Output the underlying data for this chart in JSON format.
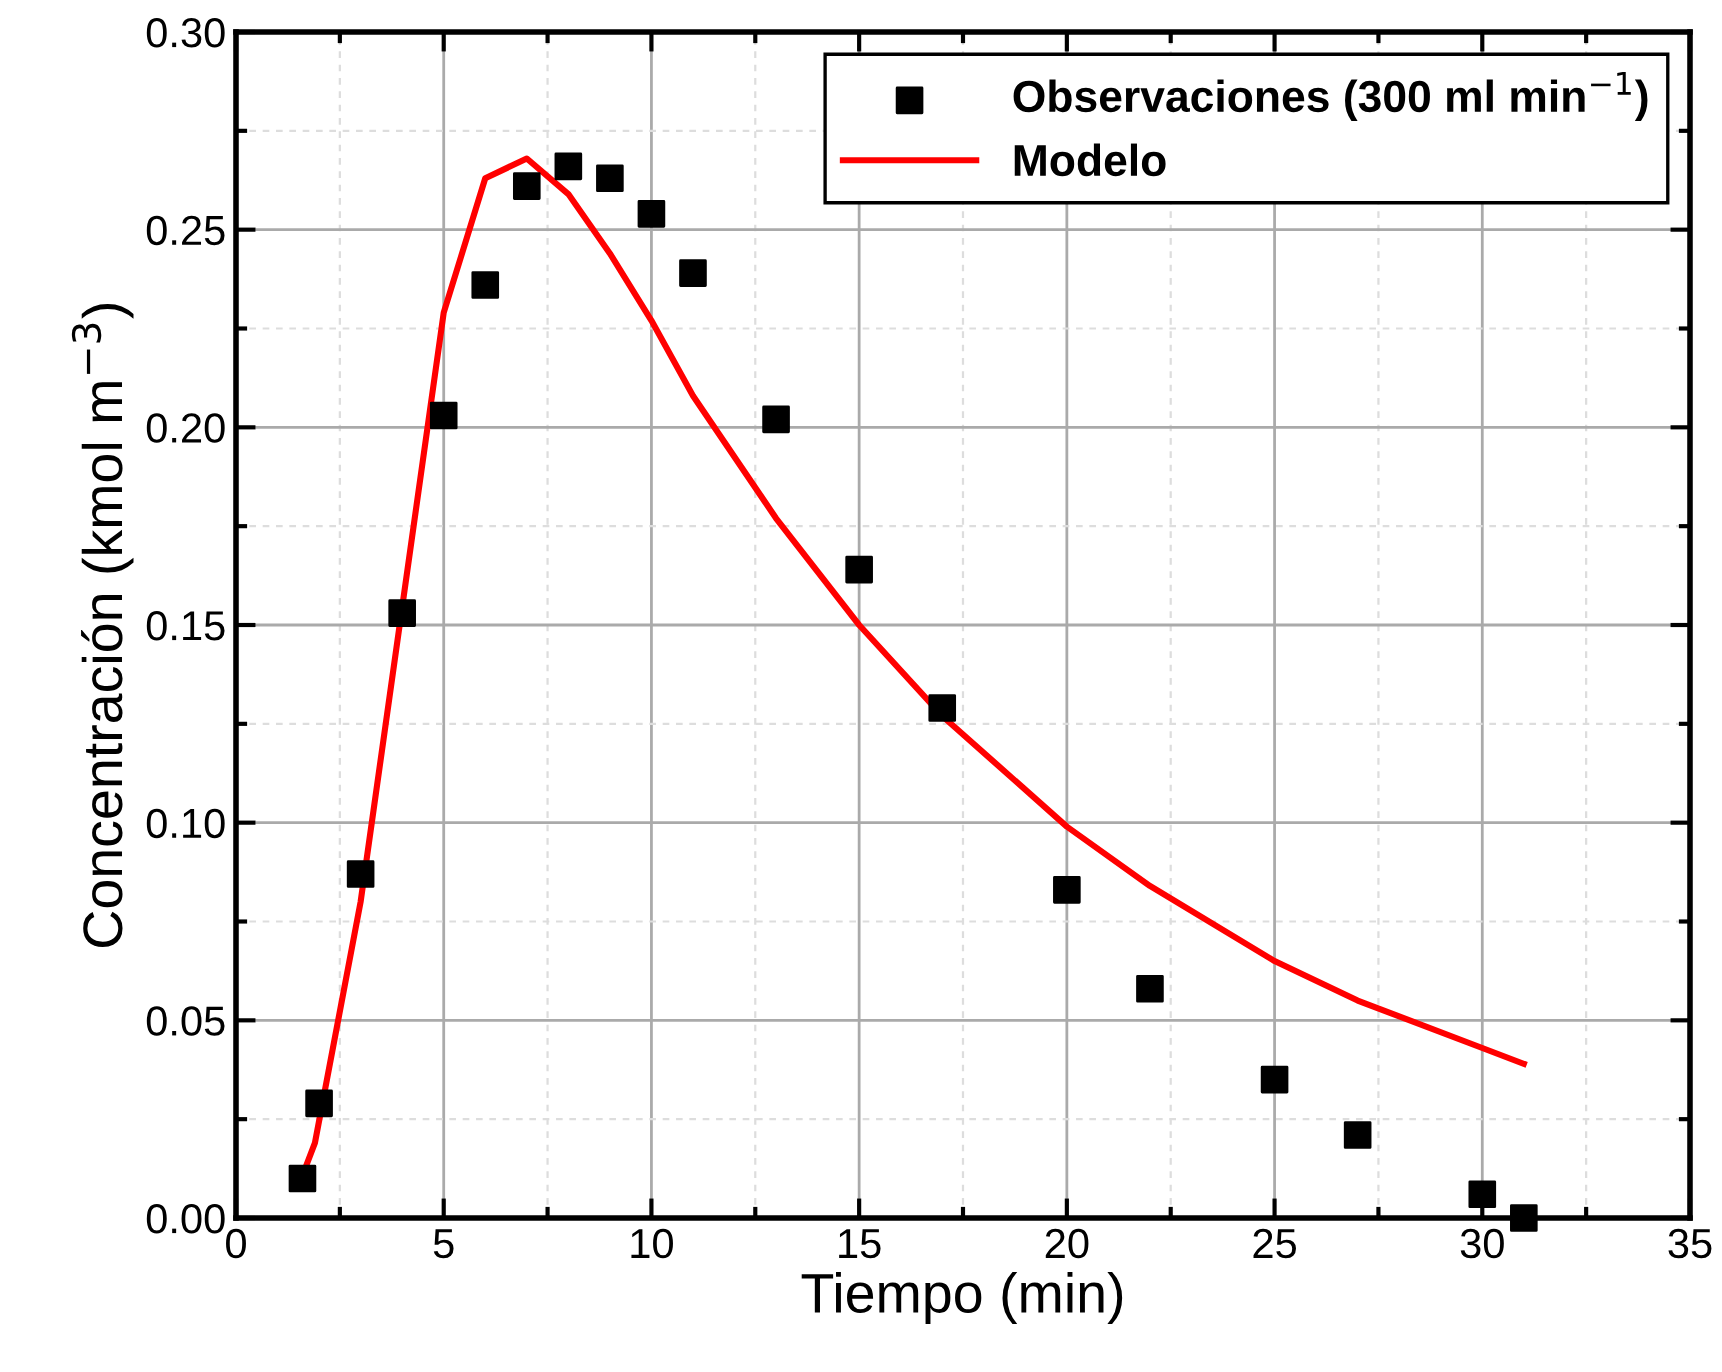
{
  "chart_data": {
    "type": "scatter",
    "xlabel": "Tiempo (min)",
    "ylabel": "Concentración (kmol m$^{−3}$)",
    "xlim": [
      0,
      35
    ],
    "xticks": [
      0,
      5,
      10,
      15,
      20,
      25,
      30,
      35
    ],
    "ylim": [
      0,
      0.3
    ],
    "yticks": [
      {
        "value": 0,
        "label": "0.00"
      },
      {
        "value": 0.05,
        "label": "0.05"
      },
      {
        "value": 0.1,
        "label": "0.10"
      },
      {
        "value": 0.15,
        "label": "0.15"
      },
      {
        "value": 0.2,
        "label": "0.20"
      },
      {
        "value": 0.25,
        "label": "0.25"
      },
      {
        "value": 0.3,
        "label": "0.30"
      }
    ],
    "grid": true,
    "legend": "top right",
    "series": [
      {
        "name": "Observaciones (300 ml min$^{−1}$)",
        "marker": "square",
        "color": "#000000",
        "x": [
          1.6,
          2,
          3,
          4,
          5,
          6,
          7,
          8,
          9,
          10,
          11,
          13,
          15,
          17,
          20,
          22,
          25,
          27,
          30,
          31
        ],
        "values": [
          0.01,
          0.029,
          0.087,
          0.153,
          0.203,
          0.236,
          0.261,
          0.266,
          0.263,
          0.254,
          0.239,
          0.202,
          0.164,
          0.129,
          0.083,
          0.058,
          0.035,
          0.021,
          0.006,
          0.0
        ]
      },
      {
        "name": "Modelo",
        "type": "line",
        "line_style": "solid",
        "color": "#ff0000",
        "x": [
          1.5,
          1.9,
          3,
          5,
          6,
          7,
          8,
          9,
          10,
          11,
          13,
          15,
          17,
          20,
          22,
          25,
          27,
          30,
          31
        ],
        "values": [
          0.008,
          0.019,
          0.08,
          0.229,
          0.263,
          0.268,
          0.259,
          0.244,
          0.227,
          0.208,
          0.177,
          0.15,
          0.127,
          0.099,
          0.084,
          0.065,
          0.055,
          0.043,
          0.039
        ]
      }
    ]
  }
}
